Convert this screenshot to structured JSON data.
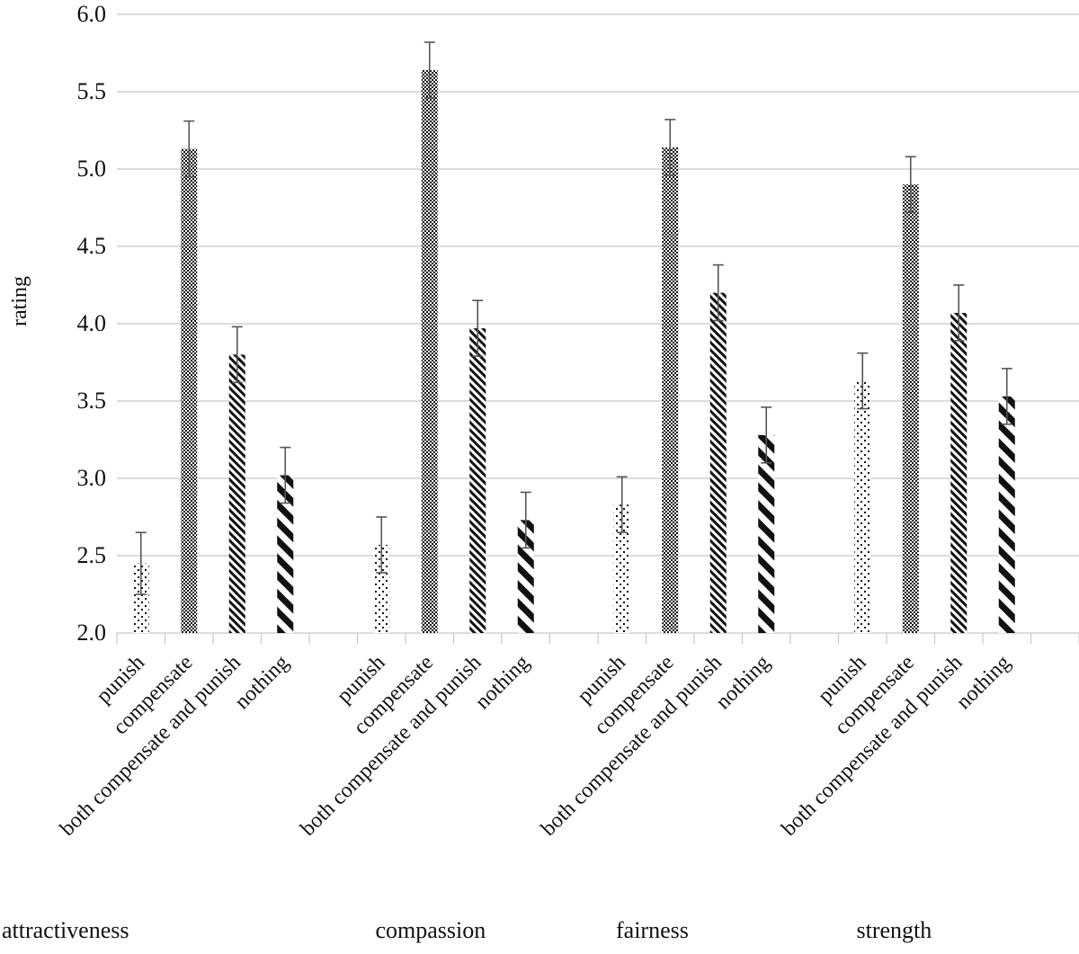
{
  "chart_data": {
    "type": "bar",
    "title": "",
    "xlabel": "",
    "ylabel": "rating",
    "ylim": [
      2.0,
      6.0
    ],
    "yticks": [
      "2.0",
      "2.5",
      "3.0",
      "3.5",
      "4.0",
      "4.5",
      "5.0",
      "5.5",
      "6.0"
    ],
    "grid": true,
    "legend": "none",
    "groups": [
      "attractiveness",
      "compassion",
      "fairness",
      "strength"
    ],
    "conditions": [
      "punish",
      "compensate",
      "both compensate and punish",
      "nothing"
    ],
    "series": [
      {
        "name": "punish",
        "values": [
          2.45,
          2.57,
          2.83,
          3.63
        ],
        "error": [
          0.2,
          0.18,
          0.18,
          0.18
        ]
      },
      {
        "name": "compensate",
        "values": [
          5.13,
          5.64,
          5.14,
          4.9
        ],
        "error": [
          0.18,
          0.18,
          0.18,
          0.18
        ]
      },
      {
        "name": "both compensate and punish",
        "values": [
          3.8,
          3.97,
          4.2,
          4.07
        ],
        "error": [
          0.18,
          0.18,
          0.18,
          0.18
        ]
      },
      {
        "name": "nothing",
        "values": [
          3.02,
          2.73,
          3.28,
          3.53
        ],
        "error": [
          0.18,
          0.18,
          0.18,
          0.18
        ]
      }
    ],
    "colors": {
      "ink": "#111111",
      "grid": "#c8c8c8",
      "error": "#555555"
    }
  }
}
